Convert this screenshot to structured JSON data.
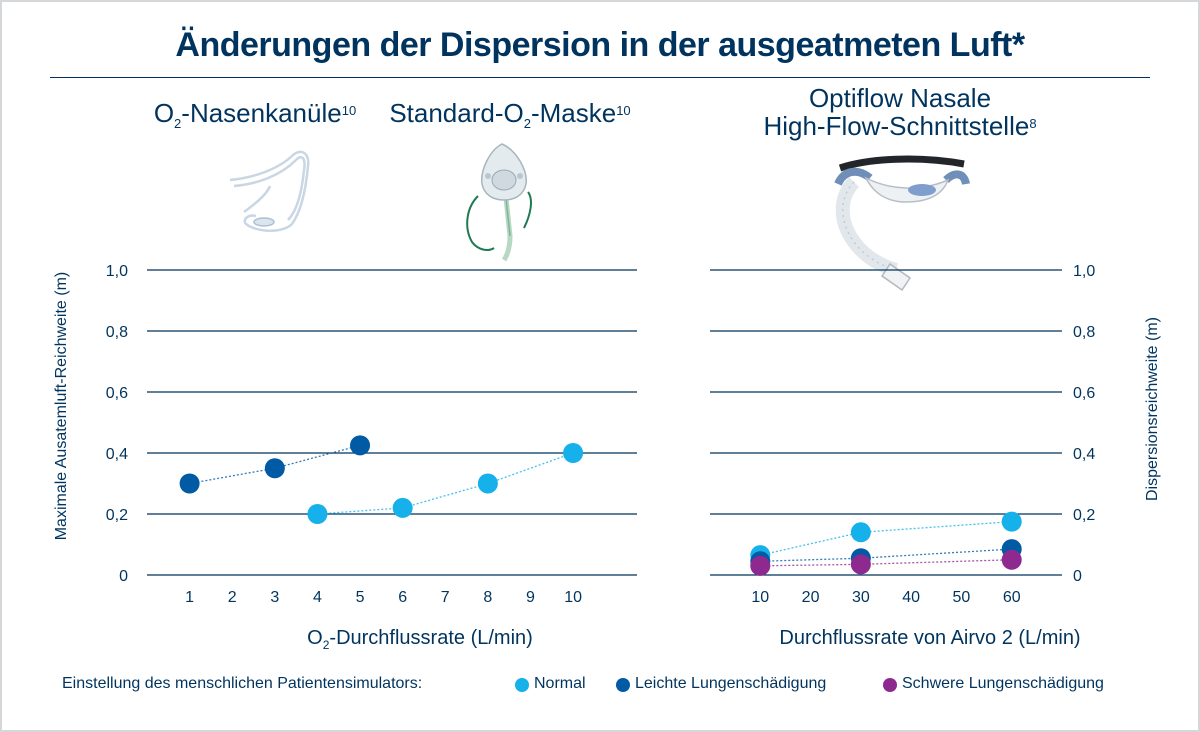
{
  "title": "Änderungen der Dispersion in der ausgeatmeten Luft*",
  "colors": {
    "normal": "#16b0ea",
    "leichte": "#005ba4",
    "schwere": "#8e2a8f",
    "text": "#00345e"
  },
  "devices": {
    "nasenkanuele": {
      "prefix": "O",
      "sub": "2",
      "rest": "-Nasenkanüle",
      "ref": "10"
    },
    "maske": {
      "prefix": "Standard-O",
      "sub": "2",
      "rest": "-Maske",
      "ref": "10"
    },
    "optiflow": {
      "line1": "Optiflow Nasale",
      "line2": "High-Flow-Schnittstelle",
      "ref": "8"
    }
  },
  "legend": {
    "label": "Einstellung des menschlichen Patientensimulators:",
    "items": [
      "Normal",
      "Leichte Lungenschädigung",
      "Schwere Lungenschädigung"
    ]
  },
  "chart_data": [
    {
      "type": "scatter",
      "title": "",
      "xlabel_prefix": "O",
      "xlabel_sub": "2",
      "xlabel_rest": "-Durchflussrate (L/min)",
      "ylabel": "Maximale Ausatemluft-Reichweite (m)",
      "ylim": [
        0,
        1.0
      ],
      "yticks": [
        "0",
        "0,2",
        "0,4",
        "0,6",
        "0,8",
        "1,0"
      ],
      "xticks": [
        "1",
        "2",
        "3",
        "4",
        "5",
        "6",
        "7",
        "8",
        "9",
        "10"
      ],
      "xlim": [
        0,
        11.5
      ],
      "series": [
        {
          "name": "Leichte Lungenschädigung",
          "color": "#005ba4",
          "x": [
            1,
            3,
            5
          ],
          "y": [
            0.3,
            0.35,
            0.425
          ]
        },
        {
          "name": "Normal",
          "color": "#16b0ea",
          "x": [
            4,
            6,
            8,
            10
          ],
          "y": [
            0.2,
            0.22,
            0.3,
            0.4
          ]
        }
      ]
    },
    {
      "type": "scatter",
      "title": "",
      "xlabel": "Durchflussrate von Airvo 2 (L/min)",
      "ylabel": "Dispersionsreichweite (m)",
      "ylim": [
        0,
        1.0
      ],
      "yticks": [
        "0",
        "0,2",
        "0,4",
        "0,6",
        "0,8",
        "1,0"
      ],
      "xticks": [
        "10",
        "20",
        "30",
        "40",
        "50",
        "60"
      ],
      "xlim": [
        0,
        70
      ],
      "series": [
        {
          "name": "Normal",
          "color": "#16b0ea",
          "x": [
            10,
            30,
            60
          ],
          "y": [
            0.065,
            0.14,
            0.175
          ]
        },
        {
          "name": "Leichte Lungenschädigung",
          "color": "#005ba4",
          "x": [
            10,
            30,
            60
          ],
          "y": [
            0.045,
            0.055,
            0.085
          ]
        },
        {
          "name": "Schwere Lungenschädigung",
          "color": "#8e2a8f",
          "x": [
            10,
            30,
            60
          ],
          "y": [
            0.03,
            0.035,
            0.05
          ]
        }
      ]
    }
  ]
}
